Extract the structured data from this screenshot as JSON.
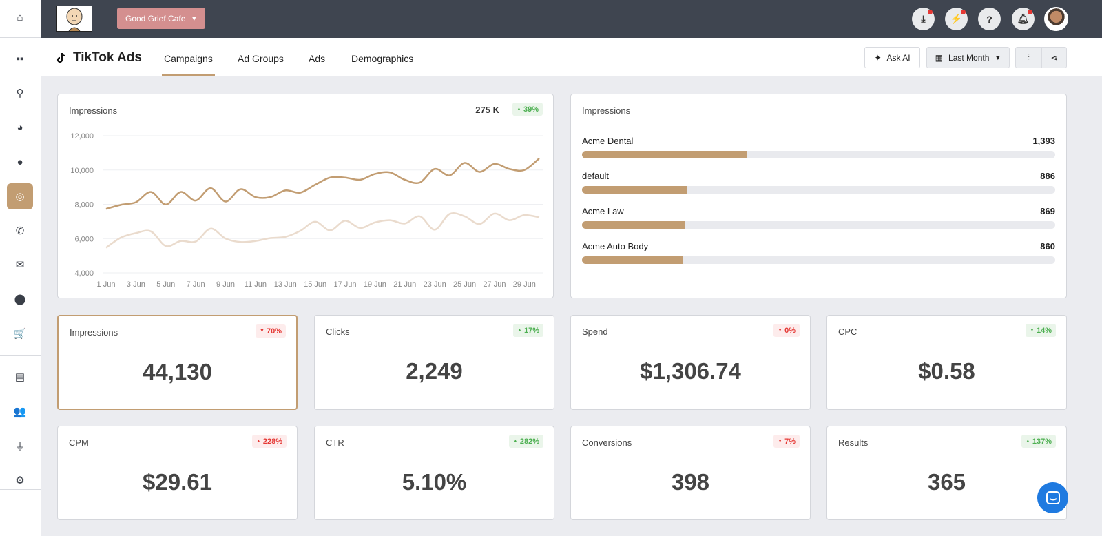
{
  "sidebar": {
    "items": [
      {
        "icon": "home-icon",
        "glyph": "⌂"
      },
      {
        "icon": "dashboard-grid-icon",
        "glyph": "▪▪"
      },
      {
        "icon": "search-icon",
        "glyph": "⚲"
      },
      {
        "icon": "pie-chart-icon",
        "glyph": "◕"
      },
      {
        "icon": "chat-icon",
        "glyph": "●"
      },
      {
        "icon": "ads-target-icon",
        "glyph": "◎",
        "active": true
      },
      {
        "icon": "phone-icon",
        "glyph": "✆"
      },
      {
        "icon": "envelope-icon",
        "glyph": "✉"
      },
      {
        "icon": "location-pin-icon",
        "glyph": "⬤"
      },
      {
        "icon": "cart-icon",
        "glyph": "🛒"
      },
      {
        "icon": "report-file-icon",
        "glyph": "▤"
      },
      {
        "icon": "users-icon",
        "glyph": "👥"
      },
      {
        "icon": "plug-icon",
        "glyph": "⏚"
      },
      {
        "icon": "gear-icon",
        "glyph": "⚙"
      }
    ]
  },
  "topbar": {
    "client": "Good Grief Cafe",
    "icons": [
      "download-folder-icon",
      "lightning-icon",
      "help-icon",
      "bell-icon"
    ],
    "help_glyph": "?"
  },
  "header": {
    "title": "TikTok Ads",
    "tabs": [
      "Campaigns",
      "Ad Groups",
      "Ads",
      "Demographics"
    ],
    "active_tab": "Campaigns",
    "ask_ai": "Ask AI",
    "date_range": "Last Month"
  },
  "colors": {
    "accent": "#c29d72",
    "accent_light": "#eadbcd",
    "up": "#4caf50",
    "down": "#e53935"
  },
  "impressions_chart": {
    "title": "Impressions",
    "total": "275 K",
    "change": "39%",
    "direction": "up"
  },
  "chart_data": {
    "type": "line",
    "title": "Impressions",
    "x": [
      "1 Jun",
      "2 Jun",
      "3 Jun",
      "4 Jun",
      "5 Jun",
      "6 Jun",
      "7 Jun",
      "8 Jun",
      "9 Jun",
      "10 Jun",
      "11 Jun",
      "12 Jun",
      "13 Jun",
      "14 Jun",
      "15 Jun",
      "16 Jun",
      "17 Jun",
      "18 Jun",
      "19 Jun",
      "20 Jun",
      "21 Jun",
      "22 Jun",
      "23 Jun",
      "24 Jun",
      "25 Jun",
      "26 Jun",
      "27 Jun",
      "28 Jun",
      "29 Jun",
      "30 Jun"
    ],
    "x_tick_labels": [
      "1 Jun",
      "3 Jun",
      "5 Jun",
      "7 Jun",
      "9 Jun",
      "11 Jun",
      "13 Jun",
      "15 Jun",
      "17 Jun",
      "19 Jun",
      "21 Jun",
      "23 Jun",
      "25 Jun",
      "27 Jun",
      "29 Jun"
    ],
    "y_tick_labels": [
      "12,000",
      "10,000",
      "8,000",
      "6,000",
      "4,000"
    ],
    "ylim": [
      4000,
      12000
    ],
    "grid": true,
    "series": [
      {
        "values": [
          7730,
          7970,
          8120,
          8720,
          7990,
          8720,
          8220,
          8940,
          8160,
          8880,
          8420,
          8420,
          8810,
          8680,
          9140,
          9560,
          9560,
          9430,
          9770,
          9860,
          9430,
          9270,
          10060,
          9690,
          10410,
          9890,
          10350,
          10060,
          10000,
          10680
        ],
        "color": "#c29d72"
      },
      {
        "values": [
          5470,
          6060,
          6320,
          6420,
          5570,
          5860,
          5830,
          6580,
          6000,
          5800,
          5860,
          6030,
          6100,
          6450,
          6980,
          6480,
          7040,
          6620,
          6940,
          7070,
          6880,
          7300,
          6520,
          7440,
          7300,
          6850,
          7460,
          7070,
          7370,
          7240
        ],
        "color": "#eadbcd"
      }
    ]
  },
  "breakdown": {
    "title": "Impressions",
    "rows": [
      {
        "label": "Acme Dental",
        "value": "1,393",
        "fill_pct": 34.8
      },
      {
        "label": "default",
        "value": "886",
        "fill_pct": 22.1
      },
      {
        "label": "Acme Law",
        "value": "869",
        "fill_pct": 21.7
      },
      {
        "label": "Acme Auto Body",
        "value": "860",
        "fill_pct": 21.4
      }
    ]
  },
  "kpis": [
    {
      "label": "Impressions",
      "value": "44,130",
      "change": "70%",
      "direction": "down",
      "tone": "bad",
      "selected": true
    },
    {
      "label": "Clicks",
      "value": "2,249",
      "change": "17%",
      "direction": "up",
      "tone": "good"
    },
    {
      "label": "Spend",
      "value": "$1,306.74",
      "change": "0%",
      "direction": "down",
      "tone": "bad"
    },
    {
      "label": "CPC",
      "value": "$0.58",
      "change": "14%",
      "direction": "down",
      "tone": "good"
    },
    {
      "label": "CPM",
      "value": "$29.61",
      "change": "228%",
      "direction": "up",
      "tone": "bad"
    },
    {
      "label": "CTR",
      "value": "5.10%",
      "change": "282%",
      "direction": "up",
      "tone": "good"
    },
    {
      "label": "Conversions",
      "value": "398",
      "change": "7%",
      "direction": "down",
      "tone": "bad"
    },
    {
      "label": "Results",
      "value": "365",
      "change": "137%",
      "direction": "up",
      "tone": "good"
    }
  ]
}
